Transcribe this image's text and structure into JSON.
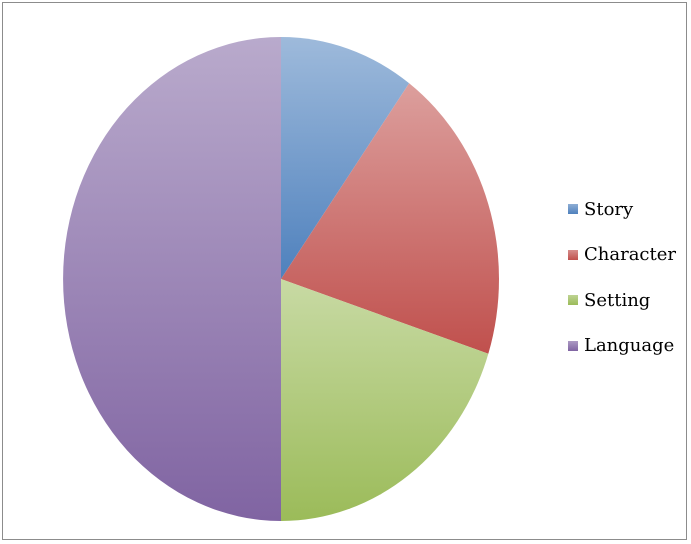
{
  "chart_data": {
    "type": "pie",
    "title": "",
    "slices": [
      {
        "label": "Story",
        "value": 10,
        "color": "#4f81bd"
      },
      {
        "label": "Character",
        "value": 20,
        "color": "#c0504d"
      },
      {
        "label": "Setting",
        "value": 20,
        "color": "#9bbb59"
      },
      {
        "label": "Language",
        "value": 50,
        "color": "#8064a2"
      }
    ],
    "start_angle": "12 o'clock",
    "direction": "clockwise",
    "legend": "right"
  }
}
